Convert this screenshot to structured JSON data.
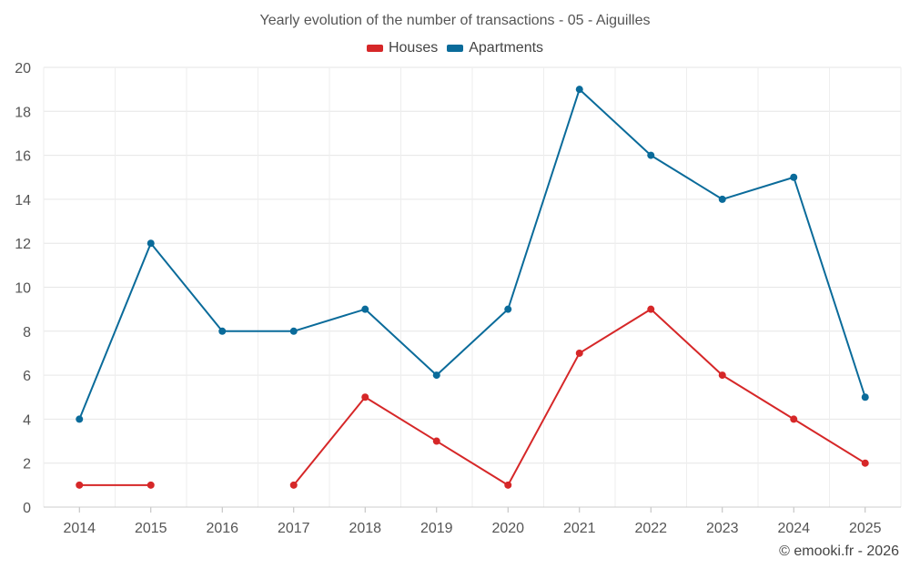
{
  "chart_data": {
    "type": "line",
    "title": "Yearly evolution of the number of transactions - 05 - Aiguilles",
    "xlabel": "",
    "ylabel": "",
    "categories": [
      "2014",
      "2015",
      "2016",
      "2017",
      "2018",
      "2019",
      "2020",
      "2021",
      "2022",
      "2023",
      "2024",
      "2025"
    ],
    "ylim": [
      0,
      20
    ],
    "yticks": [
      "0",
      "2",
      "4",
      "6",
      "8",
      "10",
      "12",
      "14",
      "16",
      "18",
      "20"
    ],
    "grid": true,
    "legend_position": "top-center",
    "series": [
      {
        "name": "Houses",
        "color": "#d62728",
        "values": [
          1,
          1,
          null,
          1,
          5,
          3,
          1,
          7,
          9,
          6,
          4,
          2
        ]
      },
      {
        "name": "Apartments",
        "color": "#0a6b9a",
        "values": [
          4,
          12,
          8,
          8,
          9,
          6,
          9,
          19,
          16,
          14,
          15,
          5
        ]
      }
    ]
  },
  "credit": "© emooki.fr - 2026"
}
